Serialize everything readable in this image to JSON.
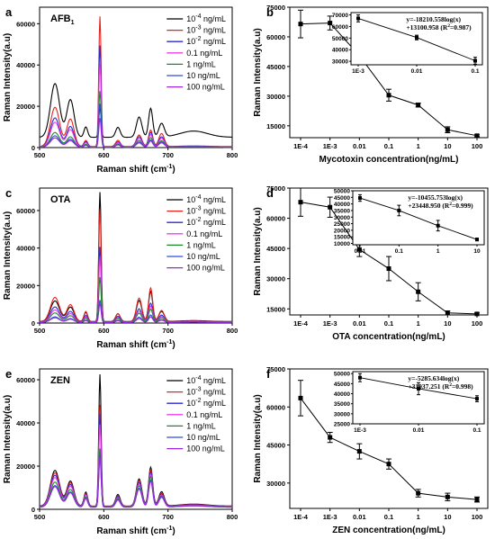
{
  "chart_data": [
    {
      "id": "a",
      "type": "line",
      "panel_label": "a",
      "title": "AFB",
      "title_sub": "1",
      "xlabel": "Raman shift (cm",
      "xlabel_sup": "-1",
      "xlabel_end": ")",
      "ylabel": "Raman Intensity(a.u)",
      "xlim": [
        500,
        800
      ],
      "ylim": [
        0,
        68000
      ],
      "xticks": [
        500,
        600,
        700,
        800
      ],
      "yticks": [
        0,
        20000,
        40000,
        60000
      ],
      "series": [
        {
          "name_pre": "10",
          "name_sup": "-4",
          "name_post": " ng/mL",
          "color": "#000000",
          "base": 5000,
          "b1": 26000,
          "b2": 10000,
          "p595": 14500,
          "p610": 8000,
          "p670": 14000,
          "p680": 11000
        },
        {
          "name_pre": "10",
          "name_sup": "-3",
          "name_post": " ng/mL",
          "color": "#e8231c",
          "base": 500,
          "b1": 19000,
          "b2": 6000,
          "p595": 63000,
          "p610": 5000,
          "p670": 8000,
          "p680": 10500
        },
        {
          "name_pre": "10",
          "name_sup": "-2",
          "name_post": " ng/mL",
          "color": "#2a2ad6",
          "base": 400,
          "b1": 14000,
          "b2": 5000,
          "p595": 49000,
          "p610": 4000,
          "p670": 7000,
          "p680": 8000
        },
        {
          "name_pre": "0.1",
          "name_sup": "",
          "name_post": "   ng/mL",
          "color": "#e840e8",
          "base": 300,
          "b1": 12000,
          "b2": 4000,
          "p595": 40000,
          "p610": 3500,
          "p670": 6000,
          "p680": 7000
        },
        {
          "name_pre": "1",
          "name_sup": "",
          "name_post": "      ng/mL",
          "color": "#1d8a2a",
          "base": 300,
          "b1": 7000,
          "b2": 2500,
          "p595": 27000,
          "p610": 2500,
          "p670": 4500,
          "p680": 5000
        },
        {
          "name_pre": "10",
          "name_sup": "",
          "name_post": "    ng/mL",
          "color": "#2b4fd8",
          "base": 200,
          "b1": 5500,
          "b2": 2000,
          "p595": 21000,
          "p610": 2000,
          "p670": 3500,
          "p680": 4200
        },
        {
          "name_pre": "100",
          "name_sup": "",
          "name_post": "  ng/mL",
          "color": "#9b27e0",
          "base": 200,
          "b1": 4500,
          "b2": 1800,
          "p595": 14000,
          "p610": 1800,
          "p670": 3000,
          "p680": 3500
        }
      ]
    },
    {
      "id": "b",
      "type": "line",
      "panel_label": "b",
      "xlabel": "Mycotoxin concentration(ng/mL)",
      "ylabel": "Raman Intensity(a.u)",
      "categories": [
        "1E-4",
        "1E-3",
        "0.01",
        "0.1",
        "1",
        "10",
        "100"
      ],
      "ylim": [
        9000,
        75000
      ],
      "yticks": [
        15000,
        30000,
        45000,
        60000,
        75000
      ],
      "values": [
        66500,
        67000,
        50500,
        30500,
        25500,
        13000,
        10000
      ],
      "errors": [
        7000,
        3500,
        2000,
        3000,
        1000,
        1500,
        500
      ],
      "inset": {
        "categories": [
          "1E-3",
          "0.01",
          "0.1"
        ],
        "values": [
          67000,
          50500,
          30500
        ],
        "errors": [
          3000,
          2000,
          3000
        ],
        "ylim": [
          27000,
          72000
        ],
        "yticks": [
          30000,
          40000,
          50000,
          60000,
          70000
        ],
        "eq_line1": "y=-18210.558log(x)",
        "eq_line2_pre": "+13100.958 (R",
        "eq_sup": "2",
        "eq_line2_post": "=0.987)"
      }
    },
    {
      "id": "c",
      "type": "line",
      "panel_label": "c",
      "title": "OTA",
      "xlabel": "Raman shift (cm",
      "xlabel_sup": "-1",
      "xlabel_end": ")",
      "ylabel": "Raman Intensity(a.u)",
      "xlim": [
        500,
        800
      ],
      "ylim": [
        0,
        72000
      ],
      "xticks": [
        500,
        600,
        700,
        800
      ],
      "yticks": [
        0,
        20000,
        40000,
        60000
      ],
      "series": [
        {
          "name_pre": "10",
          "name_sup": "-4",
          "name_post": " ng/mL",
          "color": "#000000",
          "base": 800,
          "b1": 11000,
          "b2": 10000,
          "p595": 69000,
          "p610": 7000,
          "p670": 16000,
          "p680": 9000
        },
        {
          "name_pre": "10",
          "name_sup": "-3",
          "name_post": " ng/mL",
          "color": "#e8231c",
          "base": 700,
          "b1": 13000,
          "b2": 11000,
          "p595": 60000,
          "p610": 7000,
          "p670": 18000,
          "p680": 10000
        },
        {
          "name_pre": "10",
          "name_sup": "-2",
          "name_post": " ng/mL",
          "color": "#2a2ad6",
          "base": 600,
          "b1": 8000,
          "b2": 7000,
          "p595": 40000,
          "p610": 5000,
          "p670": 10000,
          "p680": 6000
        },
        {
          "name_pre": "0.1",
          "name_sup": "",
          "name_post": "   ng/mL",
          "color": "#e840e8",
          "base": 500,
          "b1": 6500,
          "b2": 5500,
          "p595": 34000,
          "p610": 4000,
          "p670": 8500,
          "p680": 5000
        },
        {
          "name_pre": "1",
          "name_sup": "",
          "name_post": "      ng/mL",
          "color": "#1d8a2a",
          "base": 400,
          "b1": 5000,
          "b2": 4500,
          "p595": 24000,
          "p610": 3500,
          "p670": 7000,
          "p680": 4000
        },
        {
          "name_pre": "10",
          "name_sup": "",
          "name_post": "    ng/mL",
          "color": "#2b4fd8",
          "base": 300,
          "b1": 3000,
          "b2": 2500,
          "p595": 12000,
          "p610": 2000,
          "p670": 4000,
          "p680": 2500
        },
        {
          "name_pre": "100",
          "name_sup": "",
          "name_post": "  ng/mL",
          "color": "#9b27e0",
          "base": 300,
          "b1": 2500,
          "b2": 2000,
          "p595": 10000,
          "p610": 1500,
          "p670": 3000,
          "p680": 2000
        }
      ]
    },
    {
      "id": "d",
      "type": "line",
      "panel_label": "d",
      "xlabel": "OTA concentration(ng/mL)",
      "ylabel": "Raman Intensity(a.u)",
      "categories": [
        "1E-4",
        "1E-3",
        "0.01",
        "0.1",
        "1",
        "10",
        "100"
      ],
      "ylim": [
        12000,
        75000
      ],
      "yticks": [
        15000,
        30000,
        45000,
        60000,
        75000
      ],
      "values": [
        68000,
        65500,
        44500,
        35000,
        23500,
        13000,
        12500
      ],
      "errors": [
        7000,
        5000,
        3500,
        6000,
        4500,
        1000,
        500
      ],
      "inset": {
        "categories": [
          "0.01",
          "0.1",
          "1",
          "10"
        ],
        "values": [
          44500,
          35000,
          23500,
          13000
        ],
        "errors": [
          2500,
          4000,
          4000,
          1000
        ],
        "ylim": [
          9000,
          50000
        ],
        "yticks": [
          10000,
          15000,
          20000,
          25000,
          30000,
          35000,
          40000,
          45000,
          50000
        ],
        "eq_line1": "y=-10455.753log(x)",
        "eq_line2_pre": "+23448.950 (R",
        "eq_sup": "2",
        "eq_line2_post": "=0.999)"
      }
    },
    {
      "id": "e",
      "type": "line",
      "panel_label": "e",
      "title": "ZEN",
      "xlabel": "Raman shift (cm",
      "xlabel_sup": "-1",
      "xlabel_end": ")",
      "ylabel": "Raman Intensity(a.u)",
      "xlim": [
        500,
        800
      ],
      "ylim": [
        0,
        65000
      ],
      "xticks": [
        500,
        600,
        700,
        800
      ],
      "yticks": [
        0,
        20000,
        40000,
        60000
      ],
      "series": [
        {
          "name_pre": "10",
          "name_sup": "-4",
          "name_post": " ng/mL",
          "color": "#000000",
          "base": 1500,
          "b1": 16500,
          "b2": 13000,
          "p595": 61000,
          "p610": 9000,
          "p670": 18000,
          "p680": 11000
        },
        {
          "name_pre": "10",
          "name_sup": "-3",
          "name_post": " ng/mL",
          "color": "#e8231c",
          "base": 1400,
          "b1": 15500,
          "b2": 12000,
          "p595": 47000,
          "p610": 8000,
          "p670": 17000,
          "p680": 10000
        },
        {
          "name_pre": "10",
          "name_sup": "-2",
          "name_post": " ng/mL",
          "color": "#2a2ad6",
          "base": 1300,
          "b1": 14500,
          "b2": 11500,
          "p595": 43000,
          "p610": 7500,
          "p670": 16000,
          "p680": 9500
        },
        {
          "name_pre": "0.1",
          "name_sup": "",
          "name_post": "   ng/mL",
          "color": "#e840e8",
          "base": 1200,
          "b1": 13500,
          "b2": 11000,
          "p595": 38000,
          "p610": 7000,
          "p670": 15000,
          "p680": 9000
        },
        {
          "name_pre": "1",
          "name_sup": "",
          "name_post": "      ng/mL",
          "color": "#1d8a2a",
          "base": 1100,
          "b1": 11500,
          "b2": 9500,
          "p595": 27000,
          "p610": 6500,
          "p670": 14000,
          "p680": 8500
        },
        {
          "name_pre": "10",
          "name_sup": "",
          "name_post": "    ng/mL",
          "color": "#2b4fd8",
          "base": 1000,
          "b1": 10000,
          "b2": 8500,
          "p595": 24000,
          "p610": 6000,
          "p670": 12500,
          "p680": 8000
        },
        {
          "name_pre": "100",
          "name_sup": "",
          "name_post": "  ng/mL",
          "color": "#9b27e0",
          "base": 1000,
          "b1": 9500,
          "b2": 8000,
          "p595": 23000,
          "p610": 5500,
          "p670": 12000,
          "p680": 7500
        }
      ]
    },
    {
      "id": "f",
      "type": "line",
      "panel_label": "f",
      "xlabel": "ZEN concentration(ng/mL)",
      "ylabel": "Raman Intensity(a.u)",
      "categories": [
        "1E-4",
        "1E-3",
        "0.01",
        "0.1",
        "1",
        "10",
        "100"
      ],
      "ylim": [
        20000,
        75000
      ],
      "yticks": [
        30000,
        45000,
        60000,
        75000
      ],
      "values": [
        63500,
        48000,
        42500,
        37500,
        26000,
        24500,
        23500
      ],
      "errors": [
        7000,
        2000,
        3000,
        2000,
        1500,
        1500,
        1000
      ],
      "inset": {
        "categories": [
          "1E-3",
          "0.01",
          "0.1"
        ],
        "values": [
          48000,
          42500,
          37500
        ],
        "errors": [
          2000,
          3000,
          1500
        ],
        "ylim": [
          25000,
          51000
        ],
        "yticks": [
          25000,
          30000,
          35000,
          40000,
          45000,
          50000
        ],
        "eq_line1": "y=-5285.634log(x)",
        "eq_line2_pre": "+31937.251 (R",
        "eq_sup": "2",
        "eq_line2_post": "=0.998)"
      }
    }
  ]
}
